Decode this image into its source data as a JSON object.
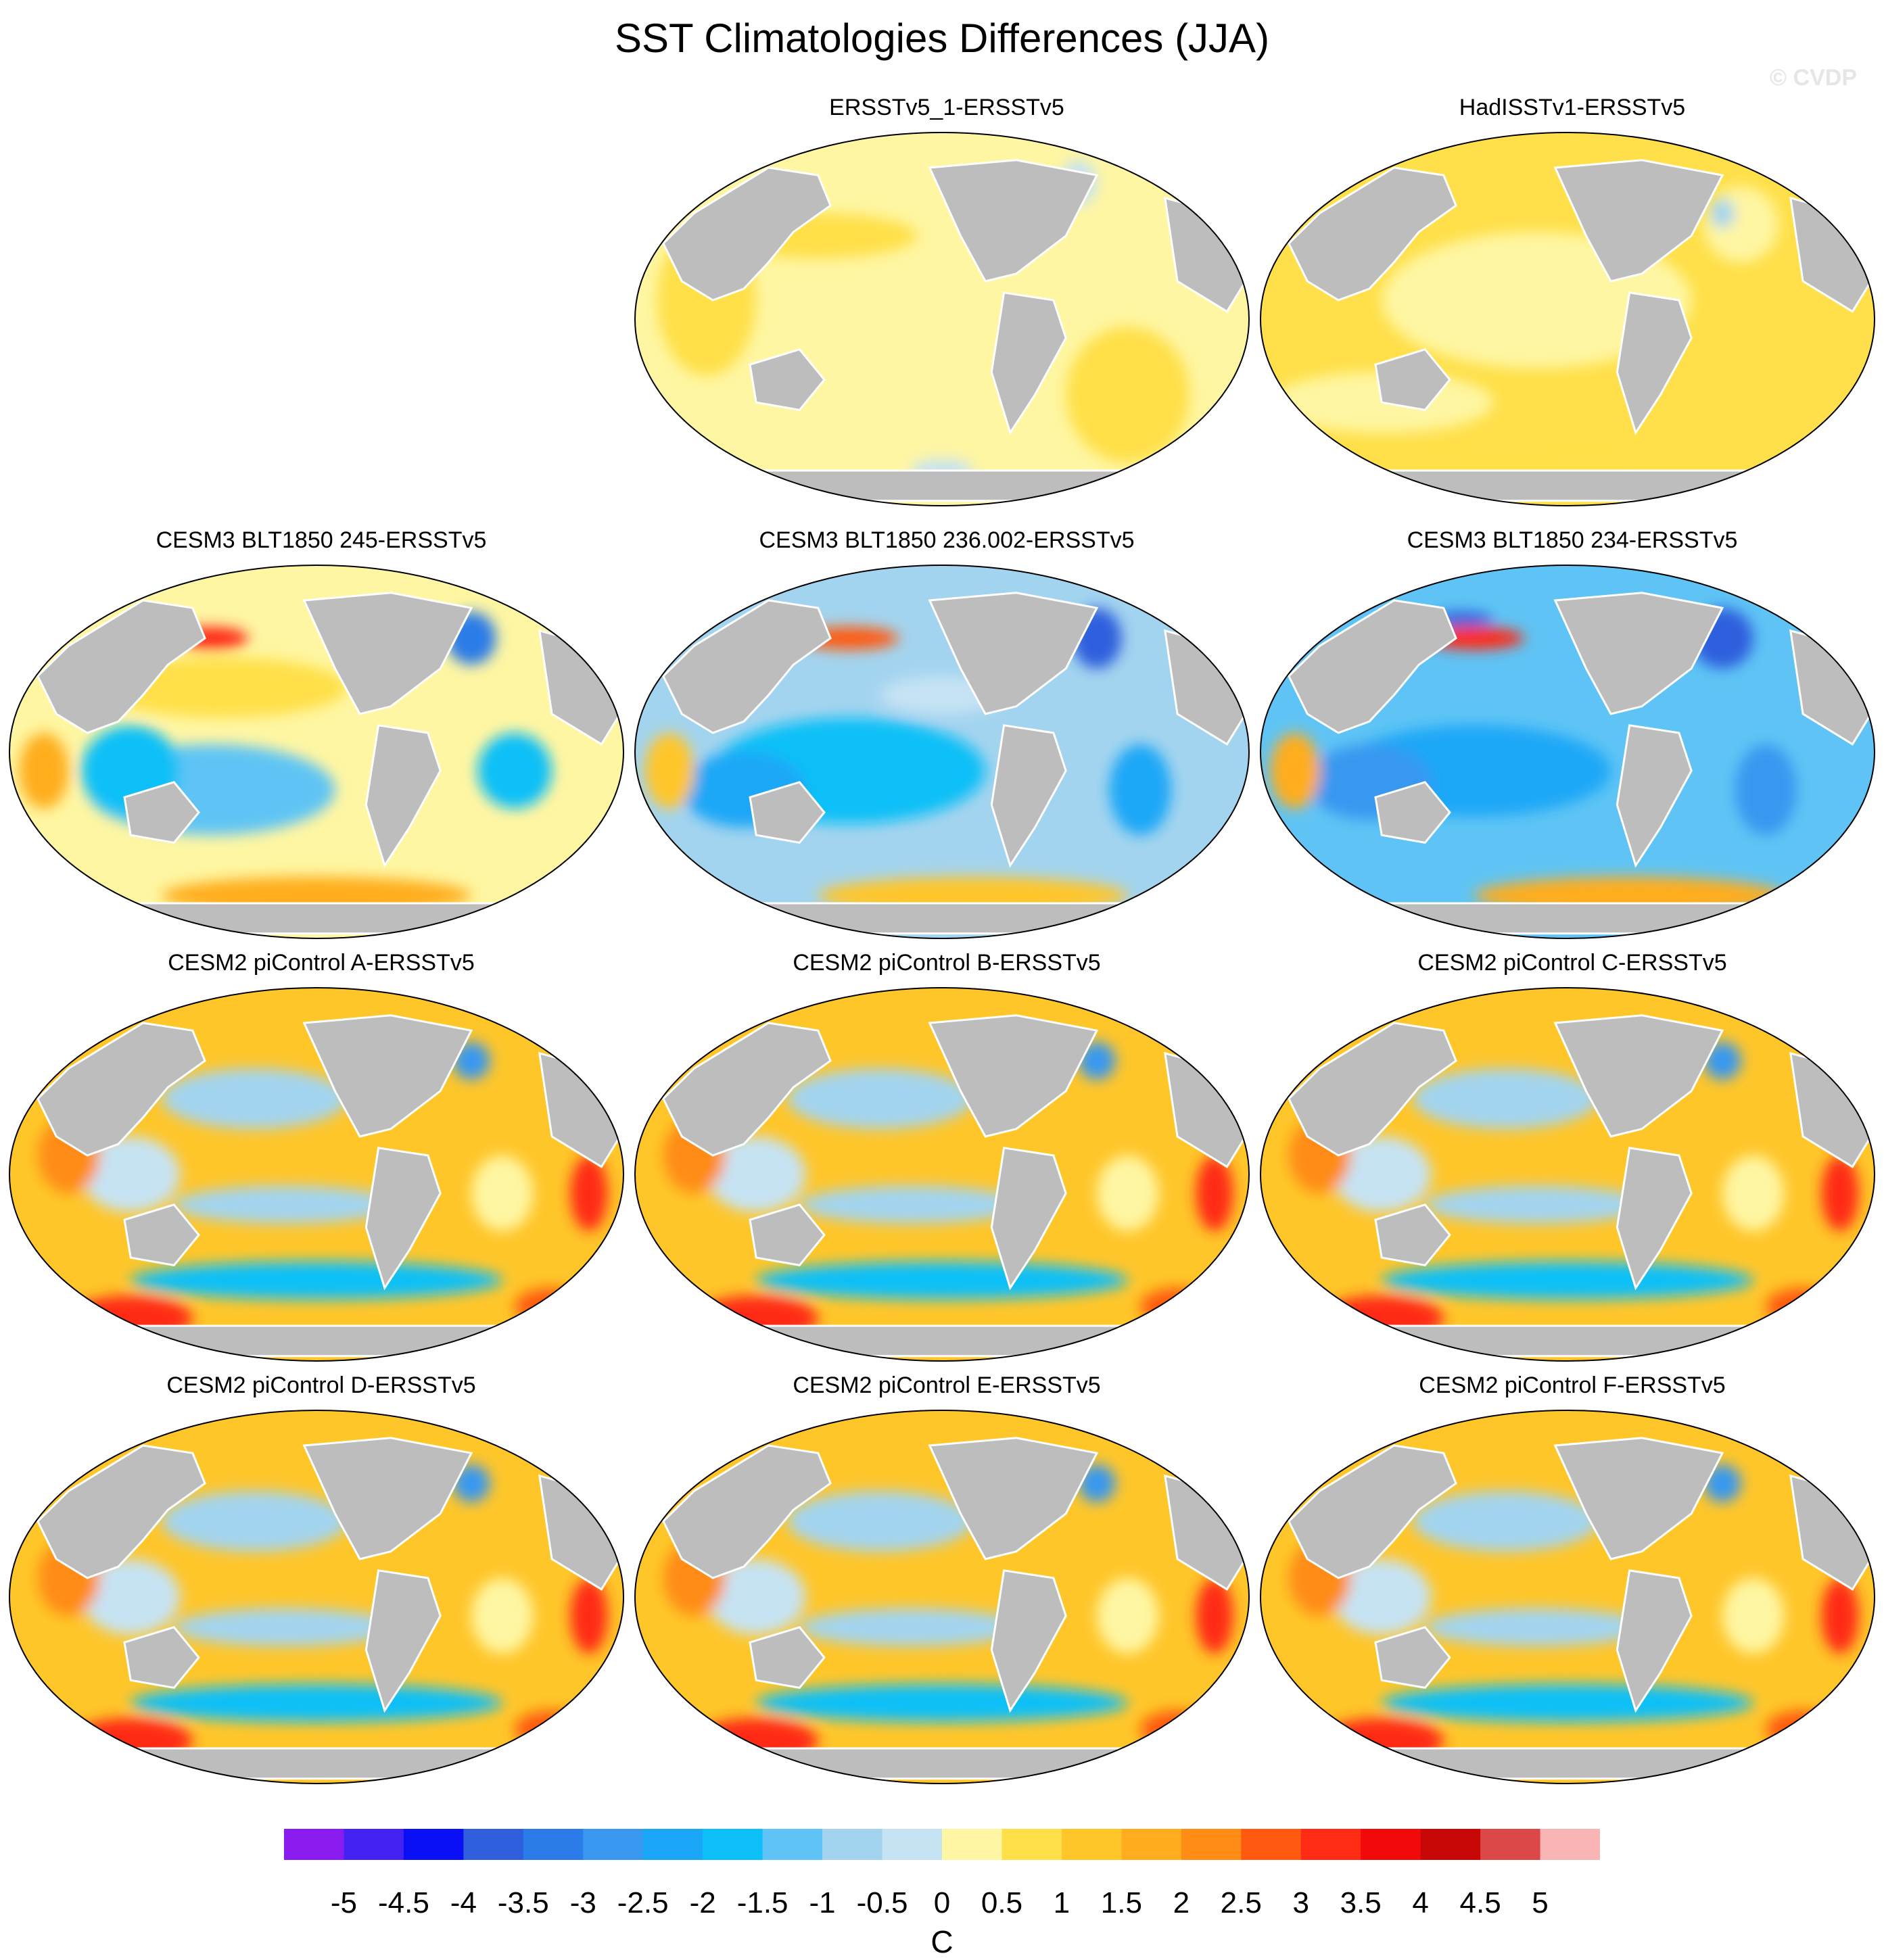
{
  "figure": {
    "title": "SST Climatologies Differences (JJA)",
    "credit": "© CVDP",
    "unit_label": "C"
  },
  "panels": [
    {
      "title": "ERSSTv5_1-ERSSTv5",
      "pattern": "obs1"
    },
    {
      "title": "HadISSTv1-ERSSTv5",
      "pattern": "obs2"
    },
    {
      "title": "CESM3 BLT1850 245-ERSSTv5",
      "pattern": "cesm3a"
    },
    {
      "title": "CESM3 BLT1850 236.002-ERSSTv5",
      "pattern": "cesm3b"
    },
    {
      "title": "CESM3 BLT1850 234-ERSSTv5",
      "pattern": "cesm3c"
    },
    {
      "title": "CESM2 piControl A-ERSSTv5",
      "pattern": "cesm2"
    },
    {
      "title": "CESM2 piControl B-ERSSTv5",
      "pattern": "cesm2"
    },
    {
      "title": "CESM2 piControl C-ERSSTv5",
      "pattern": "cesm2"
    },
    {
      "title": "CESM2 piControl D-ERSSTv5",
      "pattern": "cesm2"
    },
    {
      "title": "CESM2 piControl E-ERSSTv5",
      "pattern": "cesm2"
    },
    {
      "title": "CESM2 piControl F-ERSSTv5",
      "pattern": "cesm2"
    }
  ],
  "colorbar": {
    "colors": [
      "#8b1cf0",
      "#4423f2",
      "#0a10f5",
      "#2f5fdd",
      "#2b7be8",
      "#3898f0",
      "#1aa7f7",
      "#0cc0f7",
      "#5fc4f5",
      "#a3d4ef",
      "#c6e3f4",
      "#fff6a3",
      "#ffe04a",
      "#ffc62a",
      "#ffad1e",
      "#ff8c14",
      "#ff5a10",
      "#ff2b14",
      "#f20a0a",
      "#c80707",
      "#dc4848",
      "#f9b5b5"
    ],
    "labels": [
      "-5",
      "-4.5",
      "-4",
      "-3.5",
      "-3",
      "-2.5",
      "-2",
      "-1.5",
      "-1",
      "-0.5",
      "0",
      "0.5",
      "1",
      "1.5",
      "2",
      "2.5",
      "3",
      "3.5",
      "4",
      "4.5",
      "5"
    ],
    "land_color": "#bdbdbd"
  }
}
